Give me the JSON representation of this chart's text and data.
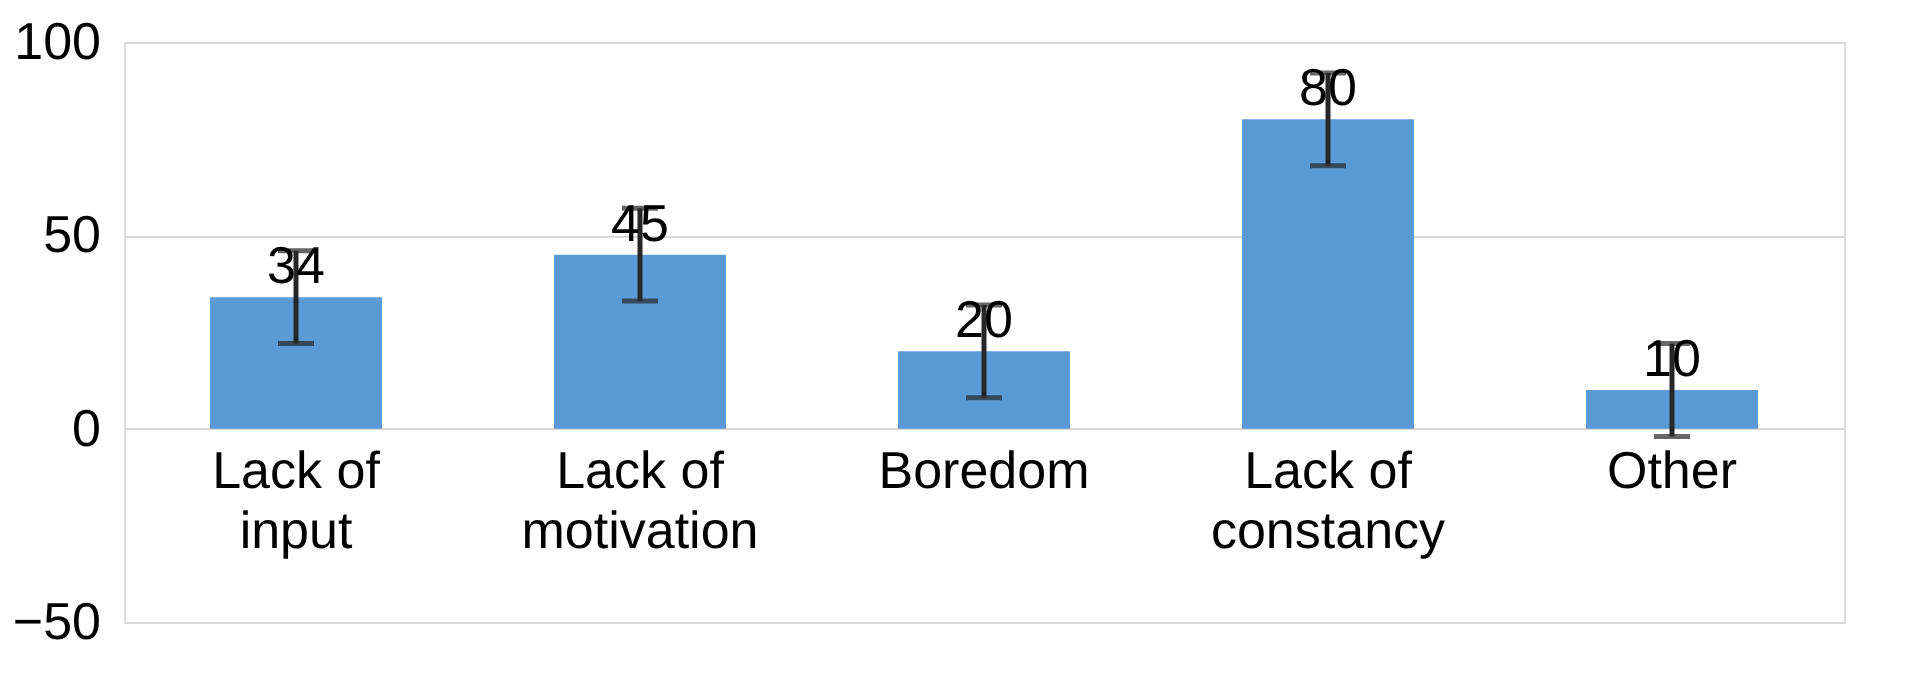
{
  "chart_data": {
    "type": "bar",
    "categories": [
      "Lack of input",
      "Lack of motivation",
      "Boredom",
      "Lack of constancy",
      "Other"
    ],
    "values": [
      34,
      45,
      20,
      80,
      10
    ],
    "errors": [
      12,
      12,
      12,
      12,
      12
    ],
    "color": "#5b9bd5",
    "ylim": [
      -50,
      100
    ],
    "yticks": [
      -50,
      0,
      50,
      100
    ],
    "grid": "y",
    "data_labels": true
  }
}
